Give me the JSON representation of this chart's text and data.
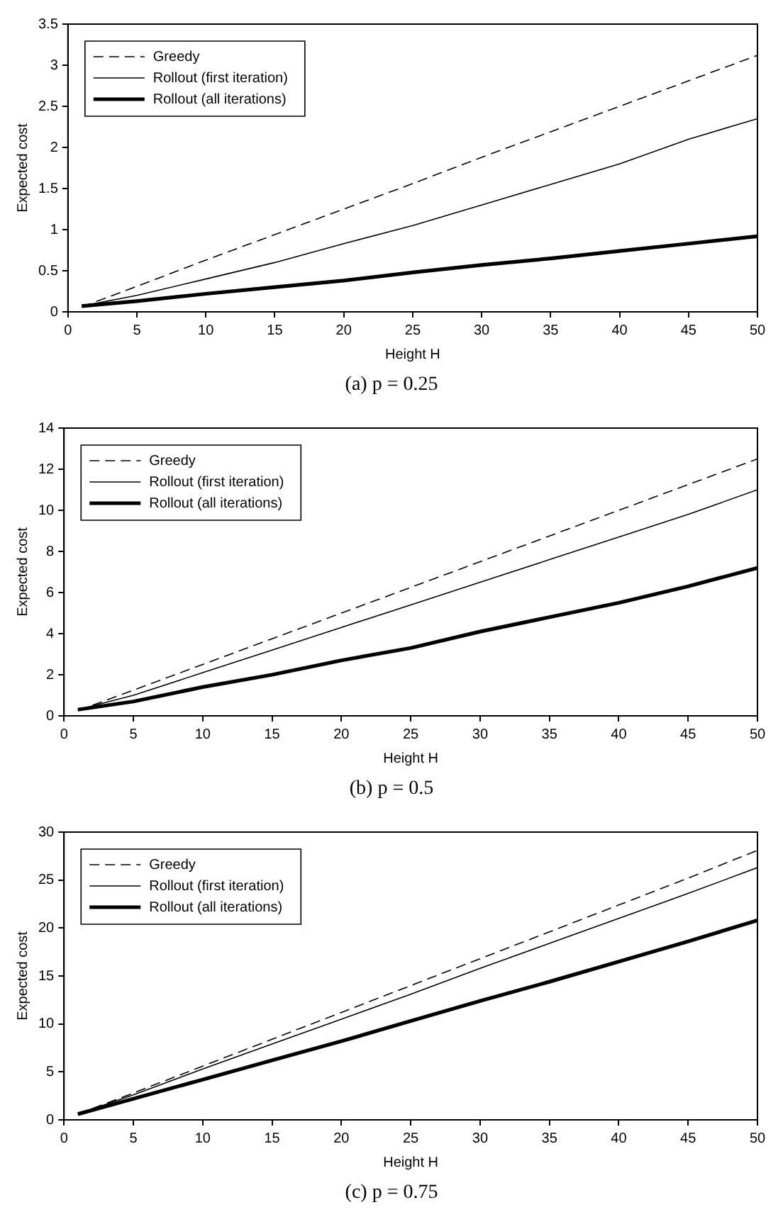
{
  "chart_data": [
    {
      "type": "line",
      "xlabel": "Height H",
      "ylabel": "Expected cost",
      "annotations": [
        "(a) p = 0.25"
      ],
      "x": [
        1,
        5,
        10,
        15,
        20,
        25,
        30,
        35,
        40,
        45,
        50
      ],
      "xlim": [
        0,
        50
      ],
      "xticks": [
        0,
        5,
        10,
        15,
        20,
        25,
        30,
        35,
        40,
        45,
        50
      ],
      "ylim": [
        0,
        3.5
      ],
      "yticks": [
        0,
        0.5,
        1,
        1.5,
        2,
        2.5,
        3,
        3.5
      ],
      "grid": false,
      "legend": "top left",
      "marker": "none",
      "series": [
        {
          "name": "Greedy",
          "color": "#000000",
          "line_style": "dashed",
          "values": [
            0.06,
            0.31,
            0.63,
            0.94,
            1.25,
            1.56,
            1.88,
            2.19,
            2.5,
            2.81,
            3.12
          ]
        },
        {
          "name": "Rollout (first iteration)",
          "color": "#000000",
          "line_style": "solid",
          "values": [
            0.07,
            0.2,
            0.4,
            0.6,
            0.83,
            1.05,
            1.3,
            1.55,
            1.8,
            2.1,
            2.35
          ]
        },
        {
          "name": "Rollout (all iterations)",
          "color": "#000000",
          "line_style": "solid",
          "values": [
            0.07,
            0.13,
            0.22,
            0.3,
            0.38,
            0.48,
            0.57,
            0.65,
            0.74,
            0.83,
            0.92
          ]
        }
      ]
    },
    {
      "type": "line",
      "xlabel": "Height H",
      "ylabel": "Expected cost",
      "annotations": [
        "(b) p = 0.5"
      ],
      "x": [
        1,
        5,
        10,
        15,
        20,
        25,
        30,
        35,
        40,
        45,
        50
      ],
      "xlim": [
        0,
        50
      ],
      "xticks": [
        0,
        5,
        10,
        15,
        20,
        25,
        30,
        35,
        40,
        45,
        50
      ],
      "ylim": [
        0,
        14
      ],
      "yticks": [
        0,
        2,
        4,
        6,
        8,
        10,
        12,
        14
      ],
      "grid": false,
      "legend": "top left",
      "marker": "none",
      "series": [
        {
          "name": "Greedy",
          "color": "#000000",
          "line_style": "dashed",
          "values": [
            0.25,
            1.25,
            2.5,
            3.75,
            5.0,
            6.25,
            7.5,
            8.75,
            10.0,
            11.25,
            12.5
          ]
        },
        {
          "name": "Rollout (first iteration)",
          "color": "#000000",
          "line_style": "solid",
          "values": [
            0.3,
            1.0,
            2.1,
            3.2,
            4.3,
            5.4,
            6.5,
            7.6,
            8.7,
            9.8,
            11.0
          ]
        },
        {
          "name": "Rollout (all iterations)",
          "color": "#000000",
          "line_style": "solid",
          "values": [
            0.3,
            0.7,
            1.4,
            2.0,
            2.7,
            3.3,
            4.1,
            4.8,
            5.5,
            6.3,
            7.2
          ]
        }
      ]
    },
    {
      "type": "line",
      "xlabel": "Height H",
      "ylabel": "Expected cost",
      "annotations": [
        "(c) p = 0.75"
      ],
      "x": [
        1,
        5,
        10,
        15,
        20,
        25,
        30,
        35,
        40,
        45,
        50
      ],
      "xlim": [
        0,
        50
      ],
      "xticks": [
        0,
        5,
        10,
        15,
        20,
        25,
        30,
        35,
        40,
        45,
        50
      ],
      "ylim": [
        0,
        30
      ],
      "yticks": [
        0,
        5,
        10,
        15,
        20,
        25,
        30
      ],
      "grid": false,
      "legend": "top left",
      "marker": "none",
      "series": [
        {
          "name": "Greedy",
          "color": "#000000",
          "line_style": "dashed",
          "values": [
            0.6,
            2.8,
            5.6,
            8.4,
            11.2,
            14.0,
            16.8,
            19.6,
            22.4,
            25.2,
            28.1
          ]
        },
        {
          "name": "Rollout (first iteration)",
          "color": "#000000",
          "line_style": "solid",
          "values": [
            0.6,
            2.6,
            5.3,
            7.9,
            10.5,
            13.1,
            15.8,
            18.4,
            21.0,
            23.6,
            26.3
          ]
        },
        {
          "name": "Rollout (all iterations)",
          "color": "#000000",
          "line_style": "solid",
          "values": [
            0.6,
            2.2,
            4.2,
            6.2,
            8.2,
            10.3,
            12.4,
            14.4,
            16.5,
            18.6,
            20.8
          ]
        }
      ]
    }
  ]
}
